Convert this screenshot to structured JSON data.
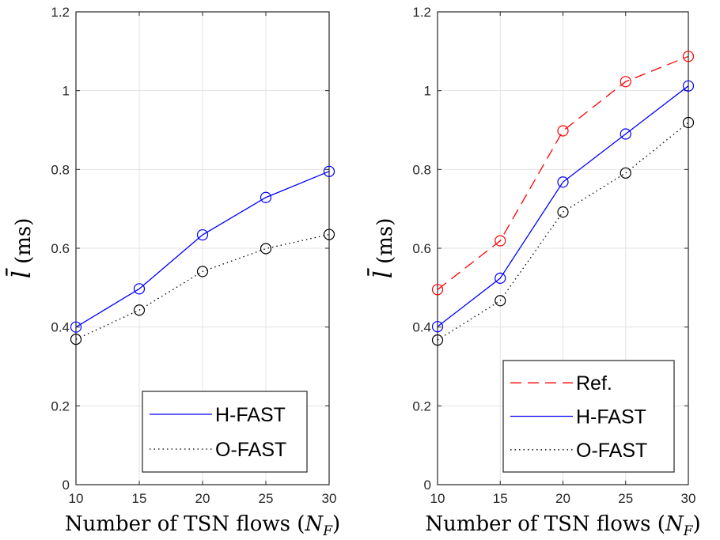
{
  "colors": {
    "h_fast": "#0000ff",
    "o_fast": "#000000",
    "ref": "#ff0000",
    "grid": "#e3e3e3",
    "axes": "#262626"
  },
  "chart_data": [
    {
      "type": "line",
      "title": "",
      "xlabel": "Number of TSN flows (N_F)",
      "ylabel": "l̄ (ms)",
      "x": [
        10,
        15,
        20,
        25,
        30
      ],
      "xlim": [
        10,
        30
      ],
      "ylim": [
        0,
        1.2
      ],
      "xticks": [
        "10",
        "15",
        "20",
        "25",
        "30"
      ],
      "yticks": [
        "0",
        "0.2",
        "0.4",
        "0.6",
        "0.8",
        "1",
        "1.2"
      ],
      "grid": true,
      "legend_position": "bottom-right",
      "series": [
        {
          "name": "H-FAST",
          "values": [
            0.4,
            0.497,
            0.634,
            0.729,
            0.795
          ],
          "line_style": "solid",
          "marker": "circle",
          "color": "#0000ff"
        },
        {
          "name": "O-FAST",
          "values": [
            0.369,
            0.443,
            0.541,
            0.599,
            0.635
          ],
          "line_style": "dotted",
          "marker": "circle",
          "color": "#000000"
        }
      ]
    },
    {
      "type": "line",
      "title": "",
      "xlabel": "Number of TSN flows (N_F)",
      "ylabel": "l̄ (ms)",
      "x": [
        10,
        15,
        20,
        25,
        30
      ],
      "xlim": [
        10,
        30
      ],
      "ylim": [
        0,
        1.2
      ],
      "xticks": [
        "10",
        "15",
        "20",
        "25",
        "30"
      ],
      "yticks": [
        "0",
        "0.2",
        "0.4",
        "0.6",
        "0.8",
        "1",
        "1.2"
      ],
      "grid": true,
      "legend_position": "bottom-right",
      "series": [
        {
          "name": "Ref.",
          "values": [
            0.495,
            0.619,
            0.898,
            1.023,
            1.087
          ],
          "line_style": "dashed",
          "marker": "circle",
          "color": "#ff0000"
        },
        {
          "name": "H-FAST",
          "values": [
            0.401,
            0.524,
            0.768,
            0.89,
            1.012
          ],
          "line_style": "solid",
          "marker": "circle",
          "color": "#0000ff"
        },
        {
          "name": "O-FAST",
          "values": [
            0.367,
            0.467,
            0.692,
            0.791,
            0.919
          ],
          "line_style": "dotted",
          "marker": "circle",
          "color": "#000000"
        }
      ]
    }
  ]
}
